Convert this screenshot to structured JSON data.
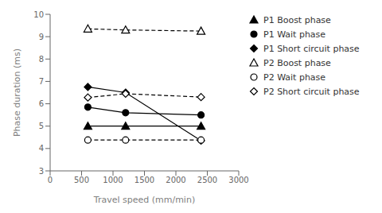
{
  "chart_data": {
    "type": "line",
    "xlabel": "Travel speed (mm/min)",
    "ylabel": "Phase duration (ms)",
    "x": [
      600,
      1200,
      2400
    ],
    "xlim": [
      0,
      3000
    ],
    "xticks": [
      0,
      500,
      1000,
      1500,
      2000,
      2500,
      3000
    ],
    "ylim": [
      3,
      10
    ],
    "yticks": [
      3,
      4,
      5,
      6,
      7,
      8,
      9,
      10
    ],
    "grid": false,
    "legend": "right",
    "series": [
      {
        "name": "P1 Boost phase",
        "color": "black",
        "marker": "triangle",
        "line_style": "solid",
        "values": [
          5.0,
          5.0,
          5.0
        ]
      },
      {
        "name": "P1 Wait phase",
        "color": "black",
        "marker": "circle",
        "line_style": "solid",
        "values": [
          5.85,
          5.6,
          5.5
        ]
      },
      {
        "name": "P1 Short circuit phase",
        "color": "black",
        "marker": "diamond",
        "line_style": "solid",
        "values": [
          6.75,
          6.5,
          4.35
        ]
      },
      {
        "name": "P2 Boost phase",
        "color": "black",
        "marker": "triangle-open",
        "line_style": "dashed",
        "values": [
          9.35,
          9.3,
          9.25
        ]
      },
      {
        "name": "P2 Wait phase",
        "color": "black",
        "marker": "circle-open",
        "line_style": "dashed",
        "values": [
          4.38,
          4.38,
          4.38
        ]
      },
      {
        "name": "P2 Short circuit phase",
        "color": "black",
        "marker": "diamond-open",
        "line_style": "dashed",
        "values": [
          6.28,
          6.45,
          6.3
        ]
      }
    ]
  }
}
